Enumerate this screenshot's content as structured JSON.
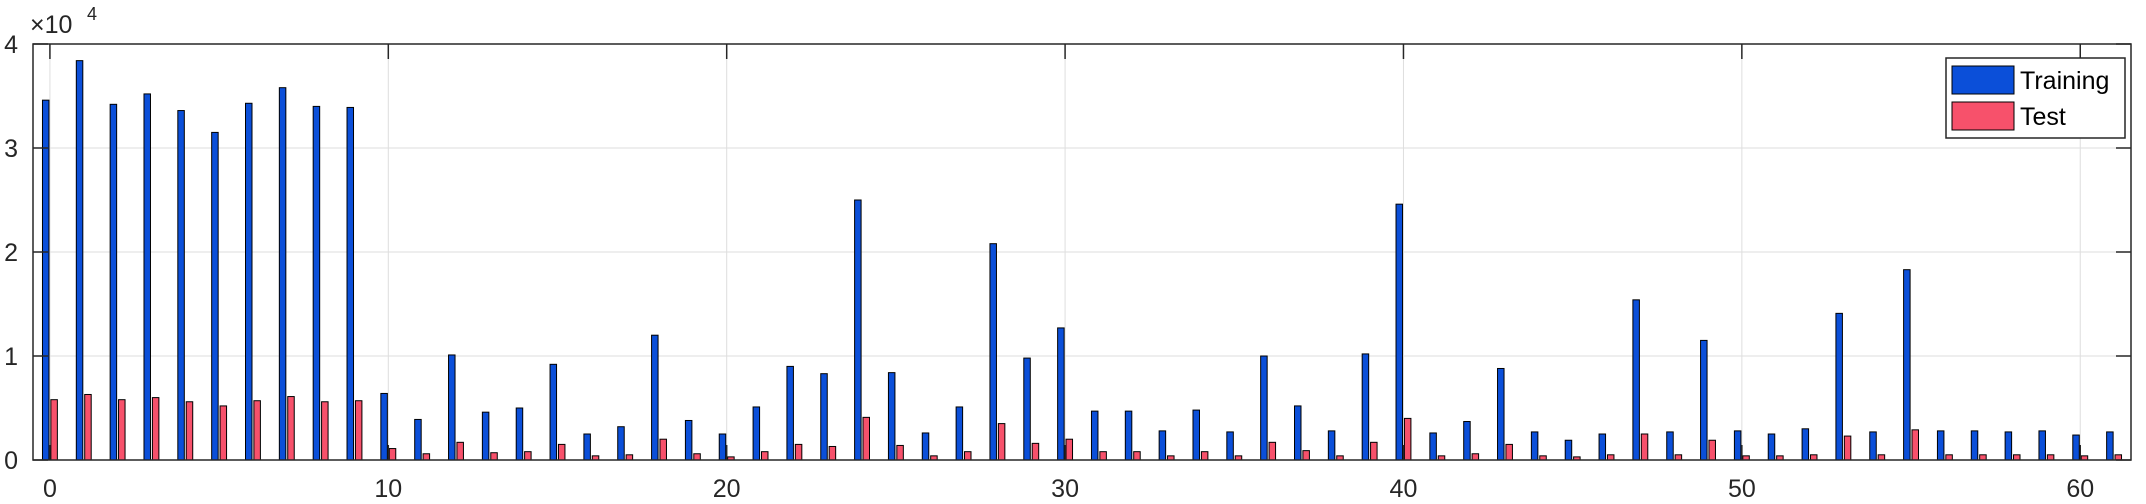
{
  "chart_data": {
    "type": "bar",
    "title": "",
    "xlabel": "",
    "ylabel": "",
    "xlim": [
      -0.5,
      61.5
    ],
    "ylim": [
      0,
      40000
    ],
    "x_ticks": [
      0,
      10,
      20,
      30,
      40,
      50,
      60
    ],
    "y_ticks": [
      0,
      10000,
      20000,
      30000,
      40000
    ],
    "y_tick_labels": [
      "0",
      "1",
      "2",
      "3",
      "4"
    ],
    "y_exponent": {
      "base": "×10",
      "power": "4"
    },
    "grid": true,
    "legend_location": "top-right",
    "categories": [
      0,
      1,
      2,
      3,
      4,
      5,
      6,
      7,
      8,
      9,
      10,
      11,
      12,
      13,
      14,
      15,
      16,
      17,
      18,
      19,
      20,
      21,
      22,
      23,
      24,
      25,
      26,
      27,
      28,
      29,
      30,
      31,
      32,
      33,
      34,
      35,
      36,
      37,
      38,
      39,
      40,
      41,
      42,
      43,
      44,
      45,
      46,
      47,
      48,
      49,
      50,
      51,
      52,
      53,
      54,
      55,
      56,
      57,
      58,
      59,
      60,
      61
    ],
    "series": [
      {
        "name": "Training",
        "color": "#0B4FD9",
        "values": [
          34600,
          38400,
          34200,
          35200,
          33600,
          31500,
          34300,
          35800,
          34000,
          33900,
          6400,
          3900,
          10100,
          4600,
          5000,
          9200,
          2500,
          3200,
          12000,
          3800,
          2500,
          5100,
          9000,
          8300,
          25000,
          8400,
          2600,
          5100,
          20800,
          9800,
          12700,
          4700,
          4700,
          2800,
          4800,
          2700,
          10000,
          5200,
          2800,
          10200,
          24600,
          2600,
          3700,
          8800,
          2700,
          1900,
          2500,
          15400,
          2700,
          11500,
          2800,
          2500,
          3000,
          14100,
          2700,
          18300,
          2800,
          2800,
          2700,
          2800,
          2400,
          2700
        ]
      },
      {
        "name": "Test",
        "color": "#F7516B",
        "values": [
          5800,
          6300,
          5800,
          6000,
          5600,
          5200,
          5700,
          6100,
          5600,
          5700,
          1100,
          600,
          1700,
          700,
          800,
          1500,
          400,
          500,
          2000,
          600,
          300,
          800,
          1500,
          1300,
          4100,
          1400,
          400,
          800,
          3500,
          1600,
          2000,
          800,
          800,
          400,
          800,
          400,
          1700,
          900,
          400,
          1700,
          4000,
          400,
          600,
          1500,
          400,
          300,
          500,
          2500,
          500,
          1900,
          400,
          400,
          500,
          2300,
          500,
          2900,
          500,
          500,
          500,
          500,
          400,
          500
        ]
      }
    ]
  }
}
